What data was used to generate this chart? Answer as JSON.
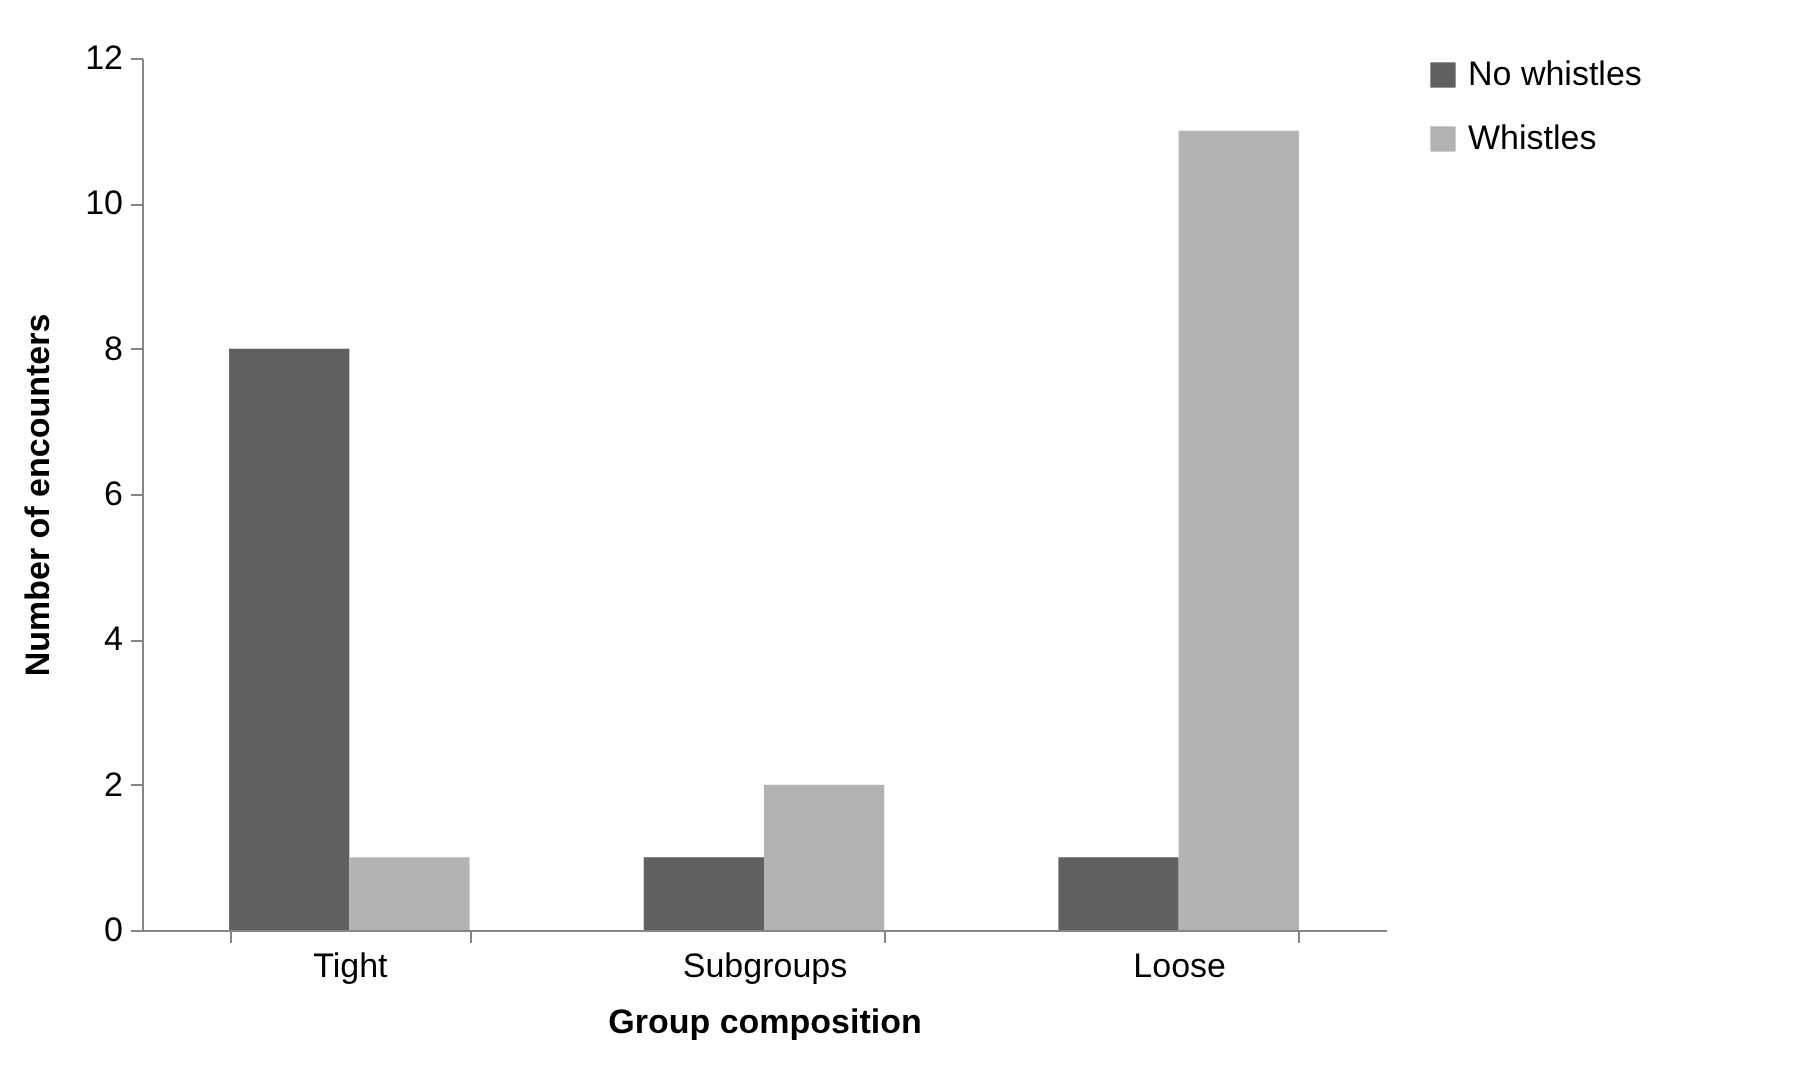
{
  "chart_data": {
    "type": "bar",
    "xlabel": "Group composition",
    "ylabel": "Number of encounters",
    "categories": [
      "Tight",
      "Subgroups",
      "Loose"
    ],
    "series": [
      {
        "name": "No whistles",
        "color": "#606060",
        "values": [
          8,
          1,
          1
        ]
      },
      {
        "name": "Whistles",
        "color": "#b3b3b3",
        "values": [
          1,
          2,
          11
        ]
      }
    ],
    "ylim": [
      0,
      12
    ],
    "yticks": [
      0,
      2,
      4,
      6,
      8,
      10,
      12
    ],
    "grid": false,
    "legend": "right"
  }
}
